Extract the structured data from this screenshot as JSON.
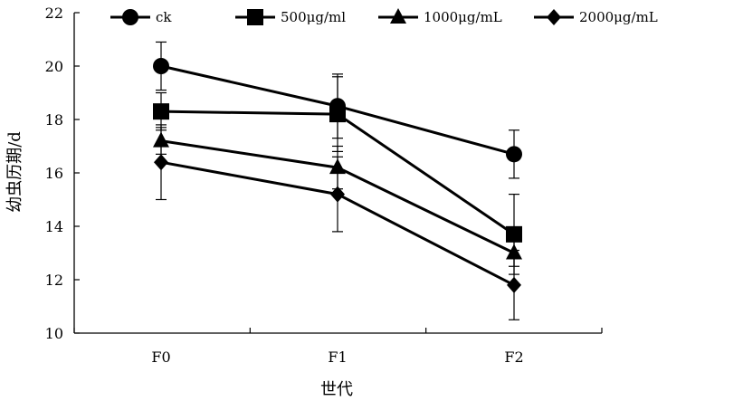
{
  "chart_data": {
    "type": "line",
    "categories": [
      "F0",
      "F1",
      "F2"
    ],
    "xlabel": "世代",
    "ylabel": "幼虫历期/d",
    "ylim": [
      10,
      22
    ],
    "yticks": [
      10,
      12,
      14,
      16,
      18,
      20,
      22
    ],
    "grid": false,
    "legend_position": "top",
    "series": [
      {
        "name": "ck",
        "marker": "circle",
        "values": [
          20.0,
          18.5,
          16.7
        ],
        "errors": [
          0.9,
          1.2,
          0.9
        ]
      },
      {
        "name": "500μg/ml",
        "marker": "square",
        "values": [
          18.3,
          18.2,
          13.7
        ],
        "errors": [
          0.7,
          1.4,
          1.5
        ]
      },
      {
        "name": "1000μg/mL",
        "marker": "triangle",
        "values": [
          17.2,
          16.2,
          13.0
        ],
        "errors": [
          0.5,
          0.8,
          0.5
        ]
      },
      {
        "name": "2000μg/mL",
        "marker": "diamond",
        "values": [
          16.4,
          15.2,
          11.8
        ],
        "errors": [
          1.4,
          1.4,
          1.3
        ]
      }
    ],
    "line_color": "#000000"
  }
}
